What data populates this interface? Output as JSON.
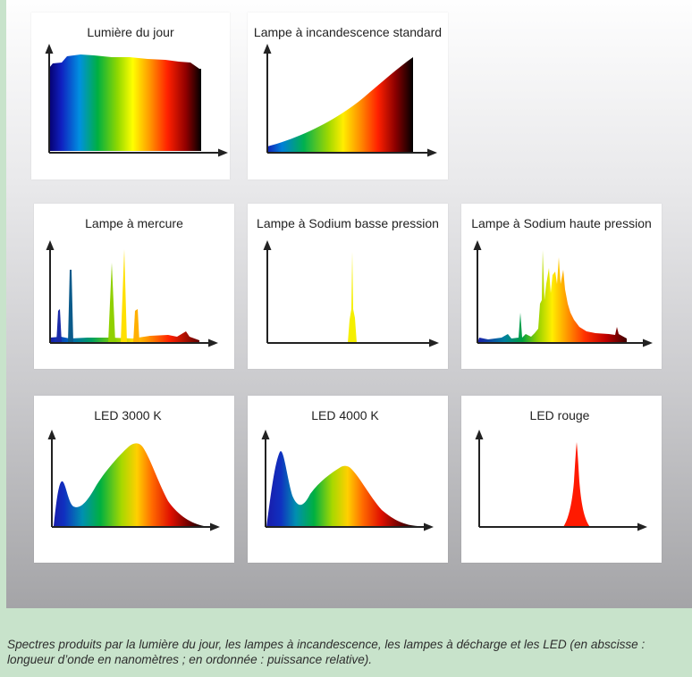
{
  "panels": [
    {
      "id": "daylight",
      "title": "Lumière du jour"
    },
    {
      "id": "incandescent",
      "title": "Lampe à incandescence standard"
    },
    {
      "id": "mercury",
      "title": "Lampe à mercure"
    },
    {
      "id": "sodium-low",
      "title": "Lampe à Sodium basse pression"
    },
    {
      "id": "sodium-high",
      "title": "Lampe à Sodium haute pression"
    },
    {
      "id": "led-3000",
      "title": "LED 3000 K"
    },
    {
      "id": "led-4000",
      "title": "LED 4000 K"
    },
    {
      "id": "led-red",
      "title": "LED rouge"
    }
  ],
  "caption": "Spectres produits par la lumière du jour, les lampes à incandescence, les lampes à décharge et les LED (en abscisse : longueur d’onde en nanomètres ; en ordonnée : puissance relative).",
  "colors": {
    "spectrum": [
      "#1a1aa8",
      "#0077dd",
      "#00b050",
      "#8ed400",
      "#ffff00",
      "#ff9900",
      "#ff2a00",
      "#c00000",
      "#2a0000"
    ],
    "caption_band": "#c8e3cb",
    "axis": "#222222"
  }
}
